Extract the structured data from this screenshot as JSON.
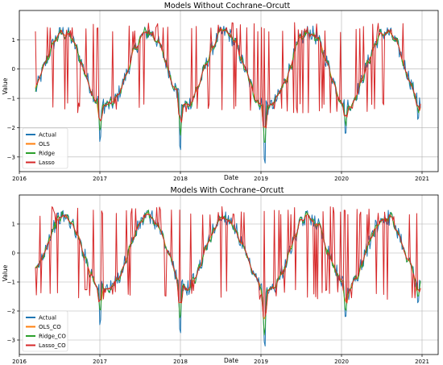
{
  "chart_data": [
    {
      "type": "line",
      "title": "Models Without Cochrane–Orcutt",
      "xlabel": "Date",
      "ylabel": "Value",
      "xlim": [
        2016.0,
        2021.2
      ],
      "ylim": [
        -3.5,
        2.0
      ],
      "xticks": [
        2016,
        2017,
        2018,
        2019,
        2020,
        2021
      ],
      "xtick_labels": [
        "2016",
        "2017",
        "2018",
        "2019",
        "2020",
        "2021"
      ],
      "yticks": [
        -3,
        -2,
        -1,
        0,
        1
      ],
      "ytick_labels": [
        "−3",
        "−2",
        "−1",
        "0",
        "1"
      ],
      "grid": true,
      "legend_position": "lower-left",
      "series": [
        {
          "name": "Actual",
          "color": "#1f77b4"
        },
        {
          "name": "OLS",
          "color": "#ff7f0e"
        },
        {
          "name": "Ridge",
          "color": "#2ca02c"
        },
        {
          "name": "Lasso",
          "color": "#d62728"
        }
      ],
      "series_shape": {
        "x_start": 2016.2,
        "x_end": 2020.98,
        "cycle_amplitude": 1.25,
        "cycle_peaks": [
          2016.55,
          2017.6,
          2018.55,
          2019.6,
          2020.55
        ],
        "annual_minima": [
          {
            "x": 2017.0,
            "y": -2.5
          },
          {
            "x": 2018.0,
            "y": -2.8
          },
          {
            "x": 2019.05,
            "y": -3.25
          },
          {
            "x": 2020.05,
            "y": -2.3
          },
          {
            "x": 2020.95,
            "y": -1.8
          }
        ],
        "lasso_spike_range": [
          -1.5,
          1.6
        ]
      }
    },
    {
      "type": "line",
      "title": "Models With Cochrane–Orcutt",
      "xlabel": "Date",
      "ylabel": "Value",
      "xlim": [
        2016.0,
        2021.2
      ],
      "ylim": [
        -3.5,
        2.0
      ],
      "xticks": [
        2016,
        2017,
        2018,
        2019,
        2020,
        2021
      ],
      "xtick_labels": [
        "2016",
        "2017",
        "2018",
        "2019",
        "2020",
        "2021"
      ],
      "yticks": [
        -3,
        -2,
        -1,
        0,
        1
      ],
      "ytick_labels": [
        "−3",
        "−2",
        "−1",
        "0",
        "1"
      ],
      "grid": true,
      "legend_position": "lower-left",
      "series": [
        {
          "name": "Actual",
          "color": "#1f77b4"
        },
        {
          "name": "OLS_CO",
          "color": "#ff7f0e"
        },
        {
          "name": "Ridge_CO",
          "color": "#2ca02c"
        },
        {
          "name": "Lasso_CO",
          "color": "#d62728"
        }
      ],
      "series_shape": {
        "x_start": 2016.2,
        "x_end": 2020.98,
        "cycle_amplitude": 1.25,
        "cycle_peaks": [
          2016.55,
          2017.6,
          2018.55,
          2019.6,
          2020.55
        ],
        "annual_minima": [
          {
            "x": 2017.0,
            "y": -2.5
          },
          {
            "x": 2018.0,
            "y": -2.8
          },
          {
            "x": 2019.05,
            "y": -3.25
          },
          {
            "x": 2020.05,
            "y": -2.3
          },
          {
            "x": 2020.95,
            "y": -1.8
          }
        ],
        "lasso_spike_range": [
          -1.6,
          1.6
        ]
      }
    }
  ]
}
